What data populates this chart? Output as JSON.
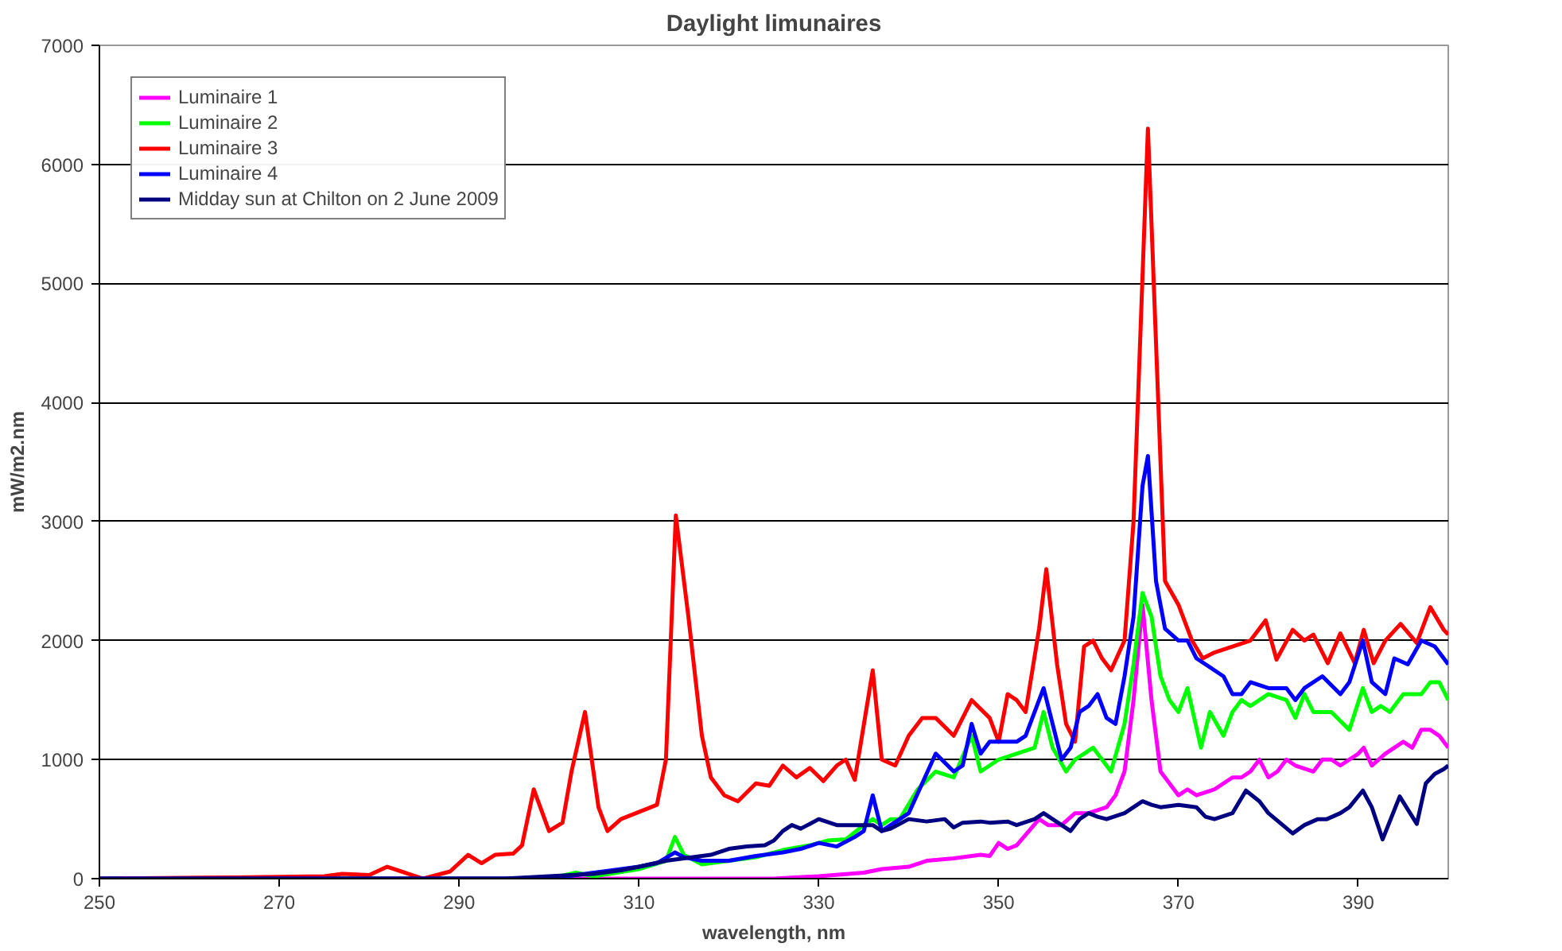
{
  "chart_data": {
    "type": "line",
    "title": "Daylight limunaires",
    "xlabel": "wavelength, nm",
    "ylabel": "mW/m2.nm",
    "xlim": [
      250,
      400
    ],
    "xticks": [
      250,
      270,
      290,
      310,
      330,
      350,
      370,
      390
    ],
    "ylim": [
      0,
      7000
    ],
    "yticks": [
      0,
      1000,
      2000,
      3000,
      4000,
      5000,
      6000,
      7000
    ],
    "grid": "y",
    "legend": "top left",
    "marker": "none",
    "line_style": "solid",
    "series": [
      {
        "name": "Luminaire 1",
        "color": "#ff00ff",
        "x": [
          250,
          300,
          325,
          330,
          335,
          337,
          340,
          342,
          345,
          348,
          349,
          350,
          351,
          352,
          354.5,
          355.5,
          357,
          358.5,
          360,
          362,
          363,
          364,
          365,
          366,
          367,
          368,
          369,
          370,
          371,
          372,
          374,
          376,
          377,
          378,
          379,
          380,
          381,
          382,
          383,
          385,
          386,
          387,
          388,
          389,
          390,
          390.6,
          391.5,
          393,
          394,
          395,
          396,
          397,
          398,
          399,
          400
        ],
        "values": [
          0,
          0,
          0,
          20,
          50,
          80,
          100,
          150,
          170,
          200,
          190,
          300,
          250,
          280,
          500,
          450,
          450,
          550,
          550,
          600,
          700,
          900,
          1500,
          2300,
          1500,
          900,
          800,
          700,
          750,
          700,
          750,
          850,
          850,
          900,
          1000,
          850,
          900,
          1000,
          950,
          900,
          1000,
          1000,
          950,
          1000,
          1050,
          1100,
          950,
          1050,
          1100,
          1150,
          1100,
          1250,
          1250,
          1200,
          1100
        ]
      },
      {
        "name": "Luminaire 2",
        "color": "#00ff00",
        "x": [
          250,
          300,
          303,
          305,
          310,
          313,
          314,
          315,
          317,
          320,
          323,
          326,
          329,
          331,
          333,
          335,
          336,
          337,
          338,
          339,
          341,
          343,
          345,
          347,
          348,
          350,
          352,
          354,
          355,
          356,
          357.5,
          358.5,
          359.5,
          360.5,
          361.5,
          362.5,
          364,
          365,
          366,
          367,
          368,
          369,
          370,
          371,
          372.5,
          373.5,
          375,
          376,
          377,
          378,
          380,
          382,
          383,
          384,
          385,
          387,
          389,
          390.5,
          391.5,
          392.5,
          393.5,
          395,
          397,
          398,
          399,
          400
        ],
        "values": [
          0,
          0,
          50,
          20,
          80,
          150,
          350,
          200,
          120,
          150,
          180,
          240,
          280,
          320,
          330,
          450,
          500,
          450,
          500,
          500,
          750,
          900,
          850,
          1200,
          900,
          1000,
          1050,
          1100,
          1400,
          1100,
          900,
          1000,
          1050,
          1100,
          1000,
          900,
          1300,
          1800,
          2400,
          2200,
          1700,
          1500,
          1400,
          1600,
          1100,
          1400,
          1200,
          1400,
          1500,
          1450,
          1550,
          1500,
          1350,
          1550,
          1400,
          1400,
          1250,
          1600,
          1400,
          1450,
          1400,
          1550,
          1550,
          1650,
          1650,
          1500
        ]
      },
      {
        "name": "Luminaire 3",
        "color": "#ff0000",
        "x": [
          250,
          265,
          275,
          277,
          280,
          282,
          284,
          286,
          289,
          291,
          292.5,
          294,
          296,
          297,
          298.3,
          300,
          301.5,
          302.5,
          304,
          305.5,
          306.5,
          308,
          310,
          312,
          313,
          314.1,
          315.5,
          317,
          318,
          319.5,
          321,
          323,
          324.5,
          326,
          327.5,
          329,
          330.5,
          332,
          333,
          334,
          336,
          337,
          338.5,
          340,
          341.5,
          343,
          345,
          347,
          349,
          350,
          351,
          352,
          353,
          354.5,
          355.3,
          356.5,
          357.5,
          358.5,
          359.5,
          360.5,
          361.5,
          362.5,
          364,
          365,
          366.6,
          367.5,
          368.5,
          370,
          371.5,
          372.7,
          374,
          376,
          378,
          379.7,
          380.9,
          382.7,
          384,
          385,
          386.6,
          388,
          389.6,
          390.6,
          391.7,
          393,
          394.7,
          396.5,
          398,
          399.5,
          400
        ],
        "values": [
          0,
          10,
          20,
          40,
          30,
          100,
          50,
          0,
          60,
          200,
          130,
          200,
          210,
          280,
          750,
          400,
          470,
          900,
          1400,
          600,
          400,
          500,
          560,
          620,
          1000,
          3050,
          2200,
          1200,
          850,
          700,
          650,
          800,
          780,
          950,
          850,
          930,
          820,
          950,
          1000,
          830,
          1750,
          1000,
          950,
          1200,
          1350,
          1350,
          1200,
          1500,
          1350,
          1150,
          1550,
          1500,
          1400,
          2100,
          2600,
          1800,
          1300,
          1150,
          1950,
          2000,
          1850,
          1750,
          2000,
          3000,
          6300,
          4500,
          2500,
          2300,
          2000,
          1850,
          1900,
          1950,
          2000,
          2170,
          1840,
          2090,
          2000,
          2050,
          1810,
          2060,
          1810,
          2090,
          1810,
          2000,
          2140,
          1980,
          2280,
          2090,
          2050
        ]
      },
      {
        "name": "Luminaire 4",
        "color": "#0000ff",
        "x": [
          250,
          300,
          302,
          305,
          308,
          310,
          312,
          314,
          315,
          317,
          320,
          323,
          326,
          328,
          330,
          332,
          334,
          335,
          336,
          337,
          338,
          340,
          341.5,
          343,
          345,
          346,
          347,
          348,
          349,
          350,
          352,
          353,
          355,
          356,
          357,
          358,
          359,
          360,
          361,
          362,
          363,
          364,
          365,
          366,
          366.6,
          367.5,
          368.5,
          370,
          371,
          372,
          374,
          375,
          376,
          377,
          378,
          380,
          382,
          383,
          384,
          386,
          388,
          389,
          390.5,
          391.5,
          393,
          394,
          395.5,
          397,
          398.5,
          400
        ],
        "values": [
          0,
          0,
          20,
          50,
          80,
          100,
          130,
          220,
          180,
          150,
          150,
          190,
          220,
          250,
          300,
          270,
          350,
          400,
          700,
          400,
          450,
          550,
          800,
          1050,
          900,
          950,
          1300,
          1050,
          1150,
          1150,
          1150,
          1200,
          1600,
          1300,
          1000,
          1100,
          1400,
          1450,
          1550,
          1350,
          1300,
          1700,
          2200,
          3300,
          3550,
          2500,
          2100,
          2000,
          2000,
          1850,
          1750,
          1700,
          1550,
          1550,
          1650,
          1600,
          1600,
          1500,
          1600,
          1700,
          1550,
          1650,
          2000,
          1650,
          1550,
          1850,
          1800,
          2000,
          1950,
          1800
        ]
      },
      {
        "name": "Midday sun at Chilton on 2 June 2009",
        "color": "#000080",
        "x": [
          250,
          295,
          300,
          305,
          308,
          310,
          313,
          315,
          318,
          320,
          322,
          324,
          325,
          326,
          327,
          328,
          330,
          332,
          334,
          336,
          337,
          338,
          340,
          342,
          344,
          345,
          346,
          348,
          349,
          351,
          352,
          354,
          355,
          356,
          357,
          358,
          359,
          360,
          361,
          362,
          364,
          365,
          366,
          367,
          368,
          370,
          372,
          373,
          374,
          376,
          377.5,
          379,
          380,
          382.7,
          384,
          385.5,
          386.5,
          388,
          389,
          390.5,
          391.5,
          392.7,
          394.6,
          396.5,
          397.5,
          398.5,
          399.5,
          400
        ],
        "values": [
          0,
          0,
          20,
          40,
          70,
          100,
          150,
          170,
          200,
          250,
          270,
          280,
          320,
          400,
          450,
          420,
          500,
          450,
          450,
          450,
          400,
          420,
          500,
          480,
          500,
          430,
          470,
          480,
          470,
          480,
          450,
          500,
          550,
          500,
          450,
          400,
          500,
          550,
          520,
          500,
          550,
          600,
          650,
          620,
          600,
          620,
          600,
          520,
          500,
          550,
          740,
          650,
          550,
          380,
          450,
          500,
          500,
          550,
          600,
          740,
          600,
          330,
          690,
          460,
          800,
          880,
          920,
          950
        ]
      }
    ]
  }
}
